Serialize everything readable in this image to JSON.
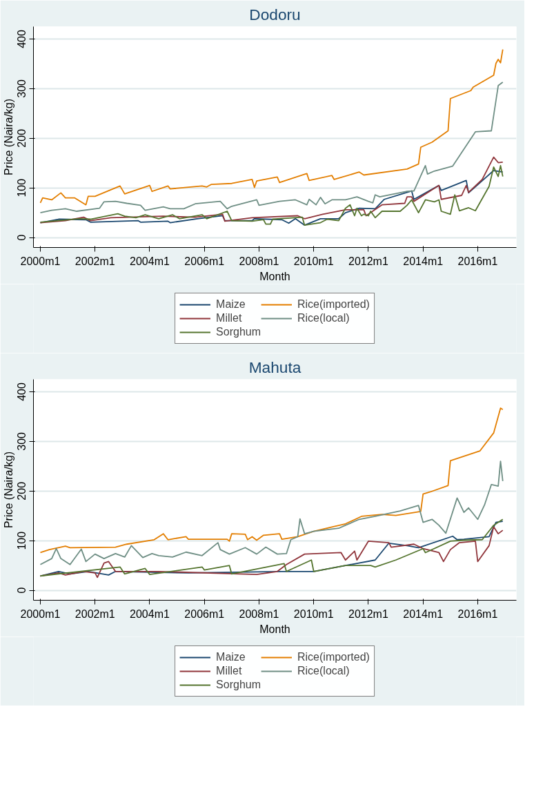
{
  "chart_data": [
    {
      "type": "line",
      "title": "Dodoru",
      "xlabel": "Month",
      "ylabel": "Price (Naira/kg)",
      "xlim": [
        "1999-10",
        "2017-06"
      ],
      "ylim": [
        -20,
        425
      ],
      "xticks": [
        {
          "value": "2000-01",
          "label": "2000m1"
        },
        {
          "value": "2002-01",
          "label": "2002m1"
        },
        {
          "value": "2004-01",
          "label": "2004m1"
        },
        {
          "value": "2006-01",
          "label": "2006m1"
        },
        {
          "value": "2008-01",
          "label": "2008m1"
        },
        {
          "value": "2010-01",
          "label": "2010m1"
        },
        {
          "value": "2012-01",
          "label": "2012m1"
        },
        {
          "value": "2014-01",
          "label": "2014m1"
        },
        {
          "value": "2016-01",
          "label": "2016m1"
        }
      ],
      "yticks": [
        0,
        100,
        200,
        300,
        400
      ],
      "grid": "y",
      "legend": "bottom",
      "marker": "none",
      "line_style": "solid",
      "series": [
        {
          "name": "Maize",
          "color": "#1a476f",
          "x": [
            "2000-01",
            "2000-09",
            "2001-09",
            "2001-11",
            "2003-08",
            "2003-09",
            "2004-09",
            "2004-10",
            "2005-10",
            "2006-09",
            "2006-10",
            "2007-10",
            "2007-11",
            "2008-11",
            "2009-02",
            "2009-05",
            "2009-09",
            "2010-04",
            "2010-12",
            "2011-03",
            "2011-09",
            "2012-04",
            "2012-08",
            "2013-08",
            "2013-09",
            "2014-08",
            "2014-09",
            "2015-08",
            "2015-09",
            "2016-08",
            "2016-12"
          ],
          "values": [
            30,
            37,
            36,
            31,
            34,
            31,
            33,
            30,
            38,
            44,
            34,
            34,
            38,
            36,
            29,
            38,
            25,
            38,
            38,
            50,
            59,
            58,
            77,
            94,
            77,
            105,
            95,
            115,
            90,
            135,
            132
          ]
        },
        {
          "name": "Millet",
          "color": "#90353b",
          "x": [
            "2000-01",
            "2000-12",
            "2001-08",
            "2001-11",
            "2002-08",
            "2004-07",
            "2005-09",
            "2006-09",
            "2006-10",
            "2007-10",
            "2009-06",
            "2009-09",
            "2010-05",
            "2011-03",
            "2011-11",
            "2011-12",
            "2012-07",
            "2013-05",
            "2013-06",
            "2013-08",
            "2013-09",
            "2014-08",
            "2014-09",
            "2015-06",
            "2015-08",
            "2015-09",
            "2016-03",
            "2016-08",
            "2016-10",
            "2016-12"
          ],
          "values": [
            30,
            34,
            41,
            34,
            40,
            43,
            41,
            47,
            33,
            40,
            44,
            38,
            47,
            56,
            56,
            44,
            66,
            69,
            82,
            82,
            73,
            105,
            77,
            85,
            105,
            91,
            117,
            162,
            151,
            152
          ]
        },
        {
          "name": "Sorghum",
          "color": "#55752f",
          "x": [
            "2000-01",
            "2001-06",
            "2001-11",
            "2002-11",
            "2003-02",
            "2003-07",
            "2003-11",
            "2004-05",
            "2004-11",
            "2005-02",
            "2005-12",
            "2006-02",
            "2006-11",
            "2007-01",
            "2007-10",
            "2008-03",
            "2008-04",
            "2008-06",
            "2008-07",
            "2009-08",
            "2009-09",
            "2010-04",
            "2010-07",
            "2010-12",
            "2011-03",
            "2011-05",
            "2011-07",
            "2011-08",
            "2011-10",
            "2011-11",
            "2012-01",
            "2012-02",
            "2012-04",
            "2012-07",
            "2013-03",
            "2013-06",
            "2013-08",
            "2013-11",
            "2014-02",
            "2014-06",
            "2014-08",
            "2014-09",
            "2015-01",
            "2015-03",
            "2015-05",
            "2015-09",
            "2015-12",
            "2016-06",
            "2016-08",
            "2016-10",
            "2016-11",
            "2016-12"
          ],
          "values": [
            31,
            38,
            37,
            48,
            43,
            40,
            46,
            38,
            46,
            38,
            46,
            38,
            53,
            34,
            33,
            36,
            27,
            27,
            37,
            41,
            25,
            30,
            37,
            34,
            59,
            66,
            44,
            59,
            44,
            47,
            44,
            53,
            40,
            53,
            53,
            65,
            76,
            50,
            76,
            72,
            76,
            53,
            47,
            86,
            54,
            60,
            54,
            103,
            142,
            123,
            145,
            123
          ]
        },
        {
          "name": "Rice(imported)",
          "color": "#e37e00",
          "x": [
            "2000-01",
            "2000-02",
            "2000-06",
            "2000-10",
            "2000-12",
            "2001-04",
            "2001-09",
            "2001-10",
            "2002-01",
            "2002-12",
            "2003-02",
            "2004-01",
            "2004-02",
            "2004-09",
            "2004-10",
            "2005-12",
            "2006-02",
            "2006-04",
            "2007-01",
            "2007-10",
            "2007-11",
            "2007-12",
            "2008-09",
            "2008-10",
            "2009-10",
            "2009-11",
            "2010-09",
            "2010-10",
            "2011-09",
            "2011-11",
            "2013-06",
            "2013-11",
            "2013-12",
            "2014-05",
            "2014-12",
            "2015-01",
            "2015-10",
            "2015-11",
            "2016-08",
            "2016-09",
            "2016-10",
            "2016-11",
            "2016-12"
          ],
          "values": [
            70,
            80,
            76,
            90,
            80,
            80,
            66,
            83,
            83,
            104,
            88,
            105,
            93,
            104,
            98,
            104,
            102,
            107,
            109,
            117,
            101,
            114,
            122,
            111,
            129,
            115,
            125,
            117,
            132,
            126,
            138,
            148,
            182,
            192,
            215,
            280,
            296,
            303,
            327,
            351,
            359,
            352,
            379
          ]
        },
        {
          "name": "Rice(local)",
          "color": "#6e8e84",
          "x": [
            "2000-01",
            "2000-06",
            "2000-12",
            "2001-05",
            "2002-03",
            "2002-05",
            "2002-10",
            "2003-03",
            "2003-09",
            "2003-11",
            "2004-07",
            "2004-10",
            "2005-04",
            "2005-09",
            "2006-08",
            "2006-11",
            "2007-01",
            "2007-12",
            "2008-01",
            "2008-10",
            "2009-05",
            "2009-10",
            "2009-11",
            "2010-02",
            "2010-04",
            "2010-06",
            "2010-09",
            "2011-03",
            "2011-08",
            "2012-01",
            "2012-03",
            "2012-04",
            "2012-06",
            "2013-06",
            "2013-09",
            "2014-02",
            "2014-03",
            "2014-06",
            "2015-02",
            "2015-12",
            "2016-07",
            "2016-10",
            "2016-12"
          ],
          "values": [
            50,
            55,
            58,
            53,
            59,
            72,
            73,
            69,
            65,
            55,
            62,
            58,
            58,
            68,
            73,
            58,
            63,
            76,
            65,
            73,
            76,
            66,
            77,
            66,
            81,
            68,
            76,
            76,
            82,
            73,
            70,
            86,
            82,
            93,
            94,
            145,
            128,
            134,
            144,
            213,
            215,
            306,
            313
          ]
        }
      ]
    },
    {
      "type": "line",
      "title": "Mahuta",
      "xlabel": "Month",
      "ylabel": "Price (Naira/kg)",
      "xlim": [
        "1999-10",
        "2017-06"
      ],
      "ylim": [
        -20,
        425
      ],
      "xticks": [
        {
          "value": "2000-01",
          "label": "2000m1"
        },
        {
          "value": "2002-01",
          "label": "2002m1"
        },
        {
          "value": "2004-01",
          "label": "2004m1"
        },
        {
          "value": "2006-01",
          "label": "2006m1"
        },
        {
          "value": "2008-01",
          "label": "2008m1"
        },
        {
          "value": "2010-01",
          "label": "2010m1"
        },
        {
          "value": "2012-01",
          "label": "2012m1"
        },
        {
          "value": "2014-01",
          "label": "2014m1"
        },
        {
          "value": "2016-01",
          "label": "2016m1"
        }
      ],
      "yticks": [
        0,
        100,
        200,
        300,
        400
      ],
      "grid": "y",
      "legend": "bottom",
      "marker": "none",
      "line_style": "solid",
      "series": [
        {
          "name": "Maize",
          "color": "#1a476f",
          "x": [
            "2000-01",
            "2000-09",
            "2001-02",
            "2001-10",
            "2002-07",
            "2002-10",
            "2005-06",
            "2008-11",
            "2010-01",
            "2011-03",
            "2012-04",
            "2012-10",
            "2013-06",
            "2013-11",
            "2015-02",
            "2015-04",
            "2015-07",
            "2016-06",
            "2016-09",
            "2016-12"
          ],
          "values": [
            29,
            38,
            33,
            38,
            31,
            38,
            35,
            38,
            38,
            50,
            61,
            95,
            90,
            86,
            109,
            102,
            103,
            108,
            137,
            139
          ]
        },
        {
          "name": "Millet",
          "color": "#90353b",
          "x": [
            "2000-01",
            "2000-09",
            "2000-12",
            "2001-08",
            "2002-01",
            "2002-02",
            "2002-05",
            "2002-07",
            "2002-10",
            "2004-05",
            "2007-12",
            "2008-09",
            "2009-01",
            "2009-09",
            "2011-01",
            "2011-03",
            "2011-07",
            "2011-08",
            "2012-01",
            "2012-10",
            "2012-11",
            "2013-09",
            "2014-01",
            "2014-08",
            "2014-10",
            "2015-01",
            "2015-05",
            "2015-12",
            "2016-01",
            "2016-06",
            "2016-08",
            "2016-10",
            "2016-12"
          ],
          "values": [
            29,
            35,
            31,
            38,
            35,
            26,
            55,
            58,
            38,
            38,
            32,
            38,
            52,
            73,
            76,
            61,
            79,
            61,
            99,
            96,
            87,
            93,
            84,
            76,
            58,
            82,
            96,
            99,
            58,
            90,
            128,
            114,
            121
          ]
        },
        {
          "name": "Sorghum",
          "color": "#55752f",
          "x": [
            "2000-01",
            "2002-12",
            "2003-02",
            "2003-11",
            "2004-01",
            "2005-12",
            "2006-01",
            "2006-12",
            "2007-01",
            "2008-12",
            "2009-01",
            "2009-12",
            "2010-01",
            "2011-03",
            "2012-02",
            "2012-04",
            "2013-01",
            "2014-01",
            "2014-02",
            "2015-01",
            "2015-07",
            "2016-03",
            "2016-08",
            "2016-12"
          ],
          "values": [
            29,
            47,
            33,
            44,
            32,
            47,
            41,
            50,
            33,
            54,
            38,
            61,
            38,
            50,
            50,
            47,
            61,
            84,
            76,
            99,
            101,
            102,
            131,
            143
          ]
        },
        {
          "name": "Rice(imported)",
          "color": "#e37e00",
          "x": [
            "2000-01",
            "2000-05",
            "2000-12",
            "2001-02",
            "2002-10",
            "2003-03",
            "2004-03",
            "2004-07",
            "2004-09",
            "2005-05",
            "2005-06",
            "2006-11",
            "2006-12",
            "2007-01",
            "2007-07",
            "2007-08",
            "2007-10",
            "2007-12",
            "2008-03",
            "2008-10",
            "2008-11",
            "2009-06",
            "2010-01",
            "2011-03",
            "2011-10",
            "2012-07",
            "2013-01",
            "2013-12",
            "2014-01",
            "2014-04",
            "2014-12",
            "2015-01",
            "2016-02",
            "2016-08",
            "2016-11",
            "2016-12"
          ],
          "values": [
            76,
            82,
            89,
            86,
            87,
            93,
            102,
            114,
            102,
            108,
            103,
            103,
            99,
            114,
            113,
            102,
            108,
            101,
            111,
            114,
            103,
            108,
            119,
            134,
            149,
            153,
            151,
            159,
            194,
            198,
            211,
            261,
            281,
            317,
            367,
            364
          ]
        },
        {
          "name": "Rice(local)",
          "color": "#6e8e84",
          "x": [
            "2000-01",
            "2000-06",
            "2000-08",
            "2000-10",
            "2001-02",
            "2001-07",
            "2001-09",
            "2002-01",
            "2002-05",
            "2002-10",
            "2003-02",
            "2003-05",
            "2003-10",
            "2004-02",
            "2004-05",
            "2004-11",
            "2005-05",
            "2005-12",
            "2006-07",
            "2006-08",
            "2006-12",
            "2007-07",
            "2007-12",
            "2008-04",
            "2008-09",
            "2009-01",
            "2009-03",
            "2009-06",
            "2009-07",
            "2009-09",
            "2010-01",
            "2010-12",
            "2011-03",
            "2011-09",
            "2012-04",
            "2013-03",
            "2013-11",
            "2014-01",
            "2014-05",
            "2014-08",
            "2014-11",
            "2015-04",
            "2015-07",
            "2015-09",
            "2016-01",
            "2016-04",
            "2016-07",
            "2016-10",
            "2016-11",
            "2016-12"
          ],
          "values": [
            52,
            64,
            84,
            64,
            52,
            83,
            58,
            73,
            64,
            74,
            67,
            90,
            66,
            74,
            70,
            67,
            77,
            70,
            96,
            82,
            73,
            86,
            73,
            87,
            73,
            74,
            102,
            108,
            144,
            114,
            119,
            125,
            131,
            143,
            149,
            160,
            171,
            137,
            143,
            131,
            115,
            186,
            157,
            166,
            143,
            172,
            213,
            210,
            260,
            220
          ]
        }
      ]
    }
  ]
}
